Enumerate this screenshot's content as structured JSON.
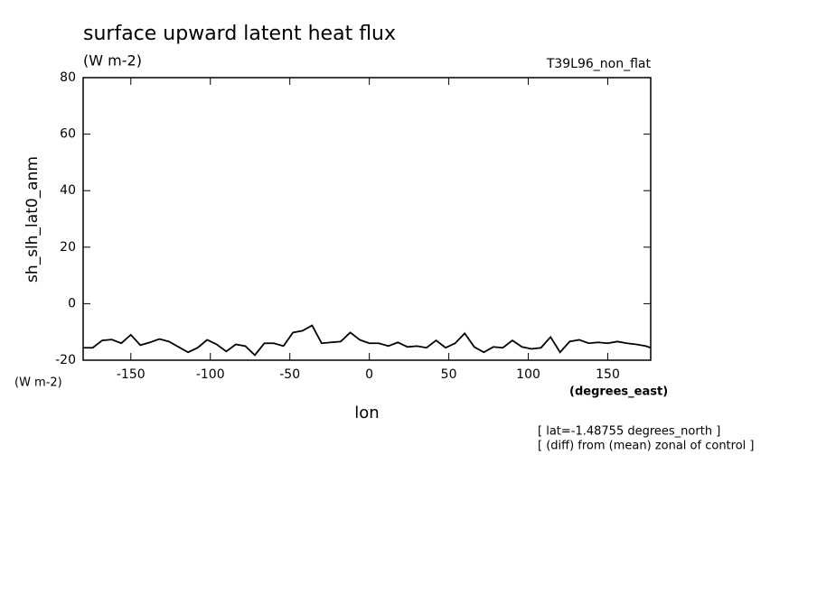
{
  "chart_data": {
    "type": "line",
    "title": "surface upward latent heat flux",
    "subtitle": "(W m-2)",
    "dataset_label": "T39L96_non_flat",
    "ylabel": "sh_slh_lat0_anm",
    "yunits": "(W m-2)",
    "xlabel": "lon",
    "xunits": "(degrees_east)",
    "annotations": [
      "[ lat=-1.48755 degrees_north ]",
      "[ (diff) from (mean) zonal of control ]"
    ],
    "x": [
      -180,
      -174,
      -168,
      -162,
      -156,
      -150,
      -144,
      -138,
      -132,
      -126,
      -120,
      -114,
      -108,
      -102,
      -96,
      -90,
      -84,
      -78,
      -72,
      -66,
      -60,
      -54,
      -48,
      -42,
      -36,
      -30,
      -24,
      -18,
      -12,
      -6,
      0,
      6,
      12,
      18,
      24,
      30,
      36,
      42,
      48,
      54,
      60,
      66,
      72,
      78,
      84,
      90,
      96,
      102,
      108,
      114,
      120,
      126,
      132,
      138,
      144,
      150,
      156,
      162,
      168,
      174,
      177
    ],
    "series": [
      {
        "name": "sh_slh_lat0_anm",
        "color": "#000000",
        "values": [
          -15.6,
          -15.6,
          -13,
          -12.7,
          -14,
          -11,
          -14.7,
          -13.7,
          -12.5,
          -13.4,
          -15.3,
          -17.2,
          -15.6,
          -12.8,
          -14.4,
          -16.9,
          -14.4,
          -15,
          -18.2,
          -14,
          -14,
          -15,
          -10.2,
          -9.6,
          -7.7,
          -14,
          -13.7,
          -13.4,
          -10.2,
          -12.8,
          -14,
          -14,
          -15,
          -13.7,
          -15.3,
          -15,
          -15.6,
          -13,
          -15.6,
          -14,
          -10.5,
          -15.3,
          -17.2,
          -15.3,
          -15.6,
          -13,
          -15.3,
          -16,
          -15.6,
          -11.8,
          -17.2,
          -13.4,
          -12.8,
          -14,
          -13.7,
          -14,
          -13.4,
          -14,
          -14.4,
          -15,
          -15.6
        ]
      }
    ],
    "xlim": [
      -180,
      177
    ],
    "ylim": [
      -20,
      80
    ],
    "xticks": [
      -150,
      -100,
      -50,
      0,
      50,
      100,
      150
    ],
    "yticks": [
      -20,
      0,
      20,
      40,
      60,
      80
    ],
    "grid": false
  }
}
